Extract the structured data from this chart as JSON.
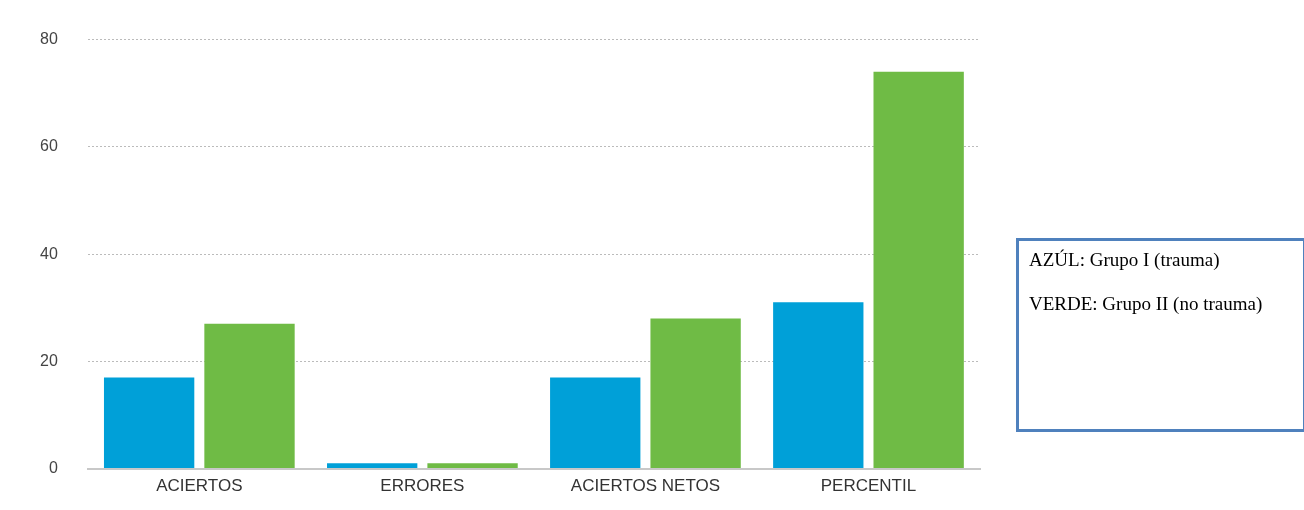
{
  "chart_data": {
    "type": "bar",
    "categories": [
      "ACIERTOS",
      "ERRORES",
      "ACIERTOS NETOS",
      "PERCENTIL"
    ],
    "series": [
      {
        "color": "#00a0d8",
        "values": [
          17,
          1,
          17,
          31
        ]
      },
      {
        "color": "#6fbb45",
        "values": [
          27,
          1,
          28,
          74
        ]
      }
    ],
    "ylim": [
      0,
      80
    ],
    "yticks": [
      0,
      20,
      40,
      60,
      80
    ],
    "grid": "y",
    "legend": false,
    "annotations": [
      "AZÚL: Grupo I (trauma)",
      "VERDE: Grupo II (no trauma)"
    ]
  }
}
